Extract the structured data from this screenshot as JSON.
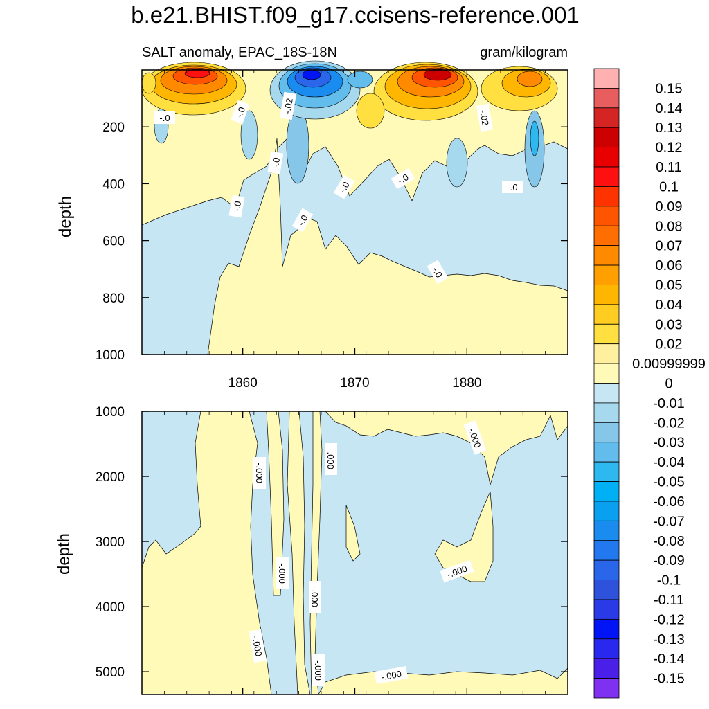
{
  "chart_data": [
    {
      "type": "contour",
      "panel": "upper",
      "title": "b.e21.BHIST.f09_g17.ccisens-reference.001",
      "subtitle_left": "SALT anomaly, EPAC_18S-18N",
      "subtitle_right": "gram/kilogram",
      "ylabel": "depth",
      "xlim": [
        1851,
        1889
      ],
      "ylim": [
        1000,
        0
      ],
      "y_ticks": [
        200,
        400,
        600,
        800,
        1000
      ],
      "x_ticks": [
        1860,
        1870,
        1880
      ],
      "x_tick_labels": [
        "1860",
        "1870",
        "1880"
      ],
      "contour_labels": [
        "-.0",
        "-.02",
        "-.0",
        "-.0",
        "-.0",
        "-.0",
        "-.02",
        "-.0",
        "-.0",
        "-.0",
        "-.0"
      ],
      "regions": [
        {
          "x": 1851.5,
          "depth": 300,
          "value": 0.005
        },
        {
          "x": 1856,
          "depth": 20,
          "value": 0.1
        },
        {
          "x": 1865.5,
          "depth": 20,
          "value": -0.12
        },
        {
          "x": 1878,
          "depth": 20,
          "value": 0.11
        },
        {
          "x": 1864,
          "depth": 250,
          "value": -0.03
        },
        {
          "x": 1887,
          "depth": 250,
          "value": -0.04
        },
        {
          "x": 1880,
          "depth": 600,
          "value": -0.005
        },
        {
          "x": 1875,
          "depth": 900,
          "value": 0.005
        },
        {
          "x": 1852,
          "depth": 800,
          "value": -0.005
        }
      ]
    },
    {
      "type": "contour",
      "panel": "lower",
      "ylabel": "depth",
      "xlim": [
        1851,
        1889
      ],
      "ylim": [
        5350,
        1000
      ],
      "y_ticks": [
        1000,
        2000,
        3000,
        4000,
        5000
      ],
      "contour_labels": [
        "-.000",
        "-.000",
        "-.000",
        "-.000",
        "-.000",
        "-.000",
        "-.000",
        "-.000",
        "-.000"
      ],
      "regions": [
        {
          "x": 1853,
          "depth": 4000,
          "value": 0.0005
        },
        {
          "x": 1860,
          "depth": 2500,
          "value": 0.0005
        },
        {
          "x": 1872,
          "depth": 3500,
          "value": -0.0005
        },
        {
          "x": 1886,
          "depth": 3000,
          "value": -0.0005
        }
      ]
    }
  ],
  "colorbar": {
    "labels": [
      "0.15",
      "0.14",
      "0.13",
      "0.12",
      "0.11",
      "0.1",
      "0.09",
      "0.08",
      "0.07",
      "0.06",
      "0.05",
      "0.04",
      "0.03",
      "0.02",
      "0.00999999",
      "0",
      "-0.01",
      "-0.02",
      "-0.03",
      "-0.04",
      "-0.05",
      "-0.06",
      "-0.07",
      "-0.08",
      "-0.09",
      "-0.1",
      "-0.11",
      "-0.12",
      "-0.13",
      "-0.14",
      "-0.15"
    ],
    "colors": [
      "#FFB0B0",
      "#E85E5E",
      "#D42424",
      "#CC0000",
      "#E80000",
      "#FF1010",
      "#FF3300",
      "#FF5500",
      "#FF6E00",
      "#FF8A00",
      "#FFA000",
      "#FFB600",
      "#FFCC22",
      "#FFE040",
      "#FFF0A0",
      "#FFFAB8",
      "#C6E6F4",
      "#A6D8EE",
      "#86C6E8",
      "#62BCEC",
      "#2EB8F0",
      "#00B0F4",
      "#0AA0F0",
      "#1A8CF0",
      "#2278EE",
      "#2A66EA",
      "#2E52DC",
      "#2A3AE6",
      "#0014F5",
      "#2828EE",
      "#4A20E8",
      "#8030F0"
    ]
  },
  "style": {
    "pos_light": "#FFFAB8",
    "neg_light": "#C6E6F4"
  }
}
